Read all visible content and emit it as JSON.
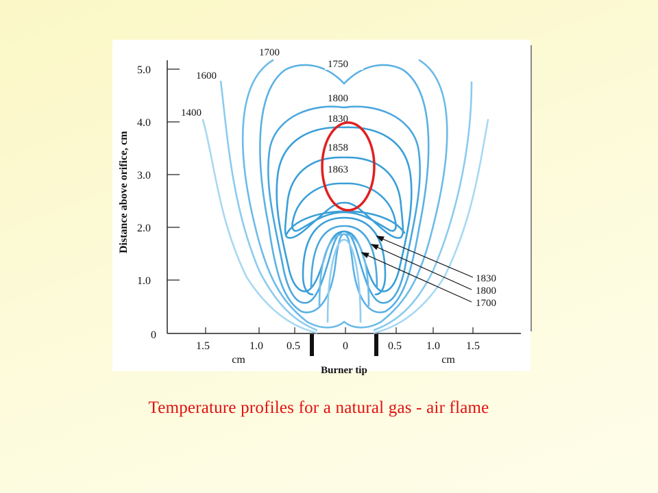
{
  "caption": "Temperature profiles for a natural gas - air flame",
  "figure": {
    "y_axis_label": "Distance above orifice, cm",
    "y_ticks": [
      "5.0",
      "4.0",
      "3.0",
      "2.0",
      "1.0",
      "0"
    ],
    "x_ticks": [
      "1.5",
      "1.0",
      "0.5",
      "0",
      "0.5",
      "1.0",
      "1.5"
    ],
    "x_unit_left": "cm",
    "x_unit_right": "cm",
    "x_axis_label": "Burner tip",
    "outer_labels": {
      "left_1400": "1400",
      "left_1600": "1600",
      "top_1700": "1700",
      "top_1750": "1750"
    },
    "inner_labels": {
      "c1800": "1800",
      "c1830": "1830",
      "c1858": "1858",
      "c1863": "1863"
    },
    "pointer_labels": [
      "1830",
      "1800",
      "1700"
    ],
    "colors": {
      "contour": "#4aa7dd",
      "contour_light": "#93cdee",
      "highlight_ellipse": "#e02020",
      "caption": "#e01010"
    }
  }
}
